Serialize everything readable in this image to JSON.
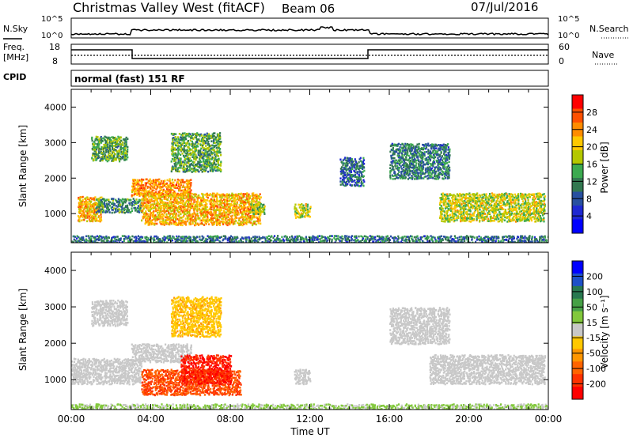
{
  "header": {
    "station": "Christmas Valley West (fitACF)",
    "beam": "Beam 06",
    "date": "07/Jul/2016"
  },
  "panels": {
    "nsky": {
      "left_label": "N.Sky",
      "left_ticks": [
        "10^5",
        "10^0"
      ],
      "right_label": "N.Search",
      "right_ticks": [
        "10^5",
        "10^0"
      ]
    },
    "freq": {
      "left_label_1": "Freq.",
      "left_label_2": "[MHz]",
      "left_ticks": [
        "18",
        "8"
      ],
      "right_label": "Nave",
      "right_ticks": [
        "60",
        "0"
      ]
    },
    "cpid": {
      "label": "CPID",
      "text": "normal (fast) 151 RF"
    }
  },
  "colorbars": {
    "power": {
      "label": "Power [dB]",
      "ticks": [
        "28",
        "24",
        "20",
        "16",
        "12",
        "8",
        "4"
      ],
      "colors": [
        "#ff0000",
        "#ff5000",
        "#ff8c00",
        "#ffc800",
        "#b4c800",
        "#3caa50",
        "#327850",
        "#2850a0",
        "#1e28d2",
        "#0000ff"
      ]
    },
    "velocity": {
      "label": "Velocity [m s⁻¹]",
      "ticks": [
        "200",
        "100",
        "50",
        "15",
        "-15",
        "-50",
        "-100",
        "-200"
      ],
      "colors": [
        "#0000ff",
        "#1e50c8",
        "#287850",
        "#46a046",
        "#82c83c",
        "#c8c8c8",
        "#ffc800",
        "#ff9600",
        "#ff6400",
        "#ff3200",
        "#ff0000"
      ]
    }
  },
  "chart_data": [
    {
      "type": "heatmap",
      "title": "Power",
      "ylabel": "Slant Range [km]",
      "ylim": [
        180,
        4500
      ],
      "yticks": [
        "4000",
        "3000",
        "2000",
        "1000"
      ],
      "xlim": [
        "00:00",
        "24:00"
      ],
      "xticks": [
        "00:00",
        "04:00",
        "08:00",
        "12:00",
        "16:00",
        "20:00",
        "00:00"
      ],
      "blobs": [
        {
          "t": [
            0.3,
            1.5
          ],
          "r": [
            800,
            1500
          ],
          "v": 22
        },
        {
          "t": [
            1.2,
            3.5
          ],
          "r": [
            1050,
            1450
          ],
          "v": 12
        },
        {
          "t": [
            1.0,
            2.8
          ],
          "r": [
            2500,
            3200
          ],
          "v": 14
        },
        {
          "t": [
            3.0,
            6.0
          ],
          "r": [
            1500,
            2000
          ],
          "v": 24
        },
        {
          "t": [
            5.0,
            7.5
          ],
          "r": [
            2200,
            3300
          ],
          "v": 14
        },
        {
          "t": [
            3.5,
            9.5
          ],
          "r": [
            700,
            1600
          ],
          "v": 22
        },
        {
          "t": [
            9.0,
            9.7
          ],
          "r": [
            1000,
            1300
          ],
          "v": 16
        },
        {
          "t": [
            11.2,
            12.0
          ],
          "r": [
            900,
            1300
          ],
          "v": 18
        },
        {
          "t": [
            13.5,
            14.7
          ],
          "r": [
            1800,
            2600
          ],
          "v": 9
        },
        {
          "t": [
            16.0,
            19.0
          ],
          "r": [
            2000,
            3000
          ],
          "v": 11
        },
        {
          "t": [
            18.5,
            23.8
          ],
          "r": [
            800,
            1600
          ],
          "v": 18
        },
        {
          "t": [
            0.0,
            24.0
          ],
          "r": [
            200,
            400
          ],
          "v": 10
        }
      ]
    },
    {
      "type": "heatmap",
      "title": "Velocity",
      "ylabel": "Slant Range [km]",
      "ylim": [
        180,
        4500
      ],
      "yticks": [
        "4000",
        "3000",
        "2000",
        "1000"
      ],
      "xlim": [
        "00:00",
        "24:00"
      ],
      "xticks": [
        "00:00",
        "04:00",
        "08:00",
        "12:00",
        "16:00",
        "20:00",
        "00:00"
      ],
      "xlabel": "Time UT",
      "blobs": [
        {
          "t": [
            0.0,
            3.5
          ],
          "r": [
            900,
            1600
          ],
          "v": 0
        },
        {
          "t": [
            1.0,
            2.8
          ],
          "r": [
            2500,
            3200
          ],
          "v": 0
        },
        {
          "t": [
            3.0,
            6.0
          ],
          "r": [
            1500,
            2000
          ],
          "v": 0
        },
        {
          "t": [
            3.5,
            8.5
          ],
          "r": [
            600,
            1300
          ],
          "v": -150
        },
        {
          "t": [
            5.5,
            8.0
          ],
          "r": [
            900,
            1700
          ],
          "v": -200
        },
        {
          "t": [
            5.0,
            7.5
          ],
          "r": [
            2200,
            3300
          ],
          "v": -40
        },
        {
          "t": [
            11.2,
            12.0
          ],
          "r": [
            900,
            1300
          ],
          "v": 0
        },
        {
          "t": [
            16.0,
            19.0
          ],
          "r": [
            2000,
            3000
          ],
          "v": 0
        },
        {
          "t": [
            18.0,
            23.8
          ],
          "r": [
            900,
            1700
          ],
          "v": 0
        },
        {
          "t": [
            0.0,
            24.0
          ],
          "r": [
            200,
            350
          ],
          "v": 20
        }
      ]
    }
  ]
}
